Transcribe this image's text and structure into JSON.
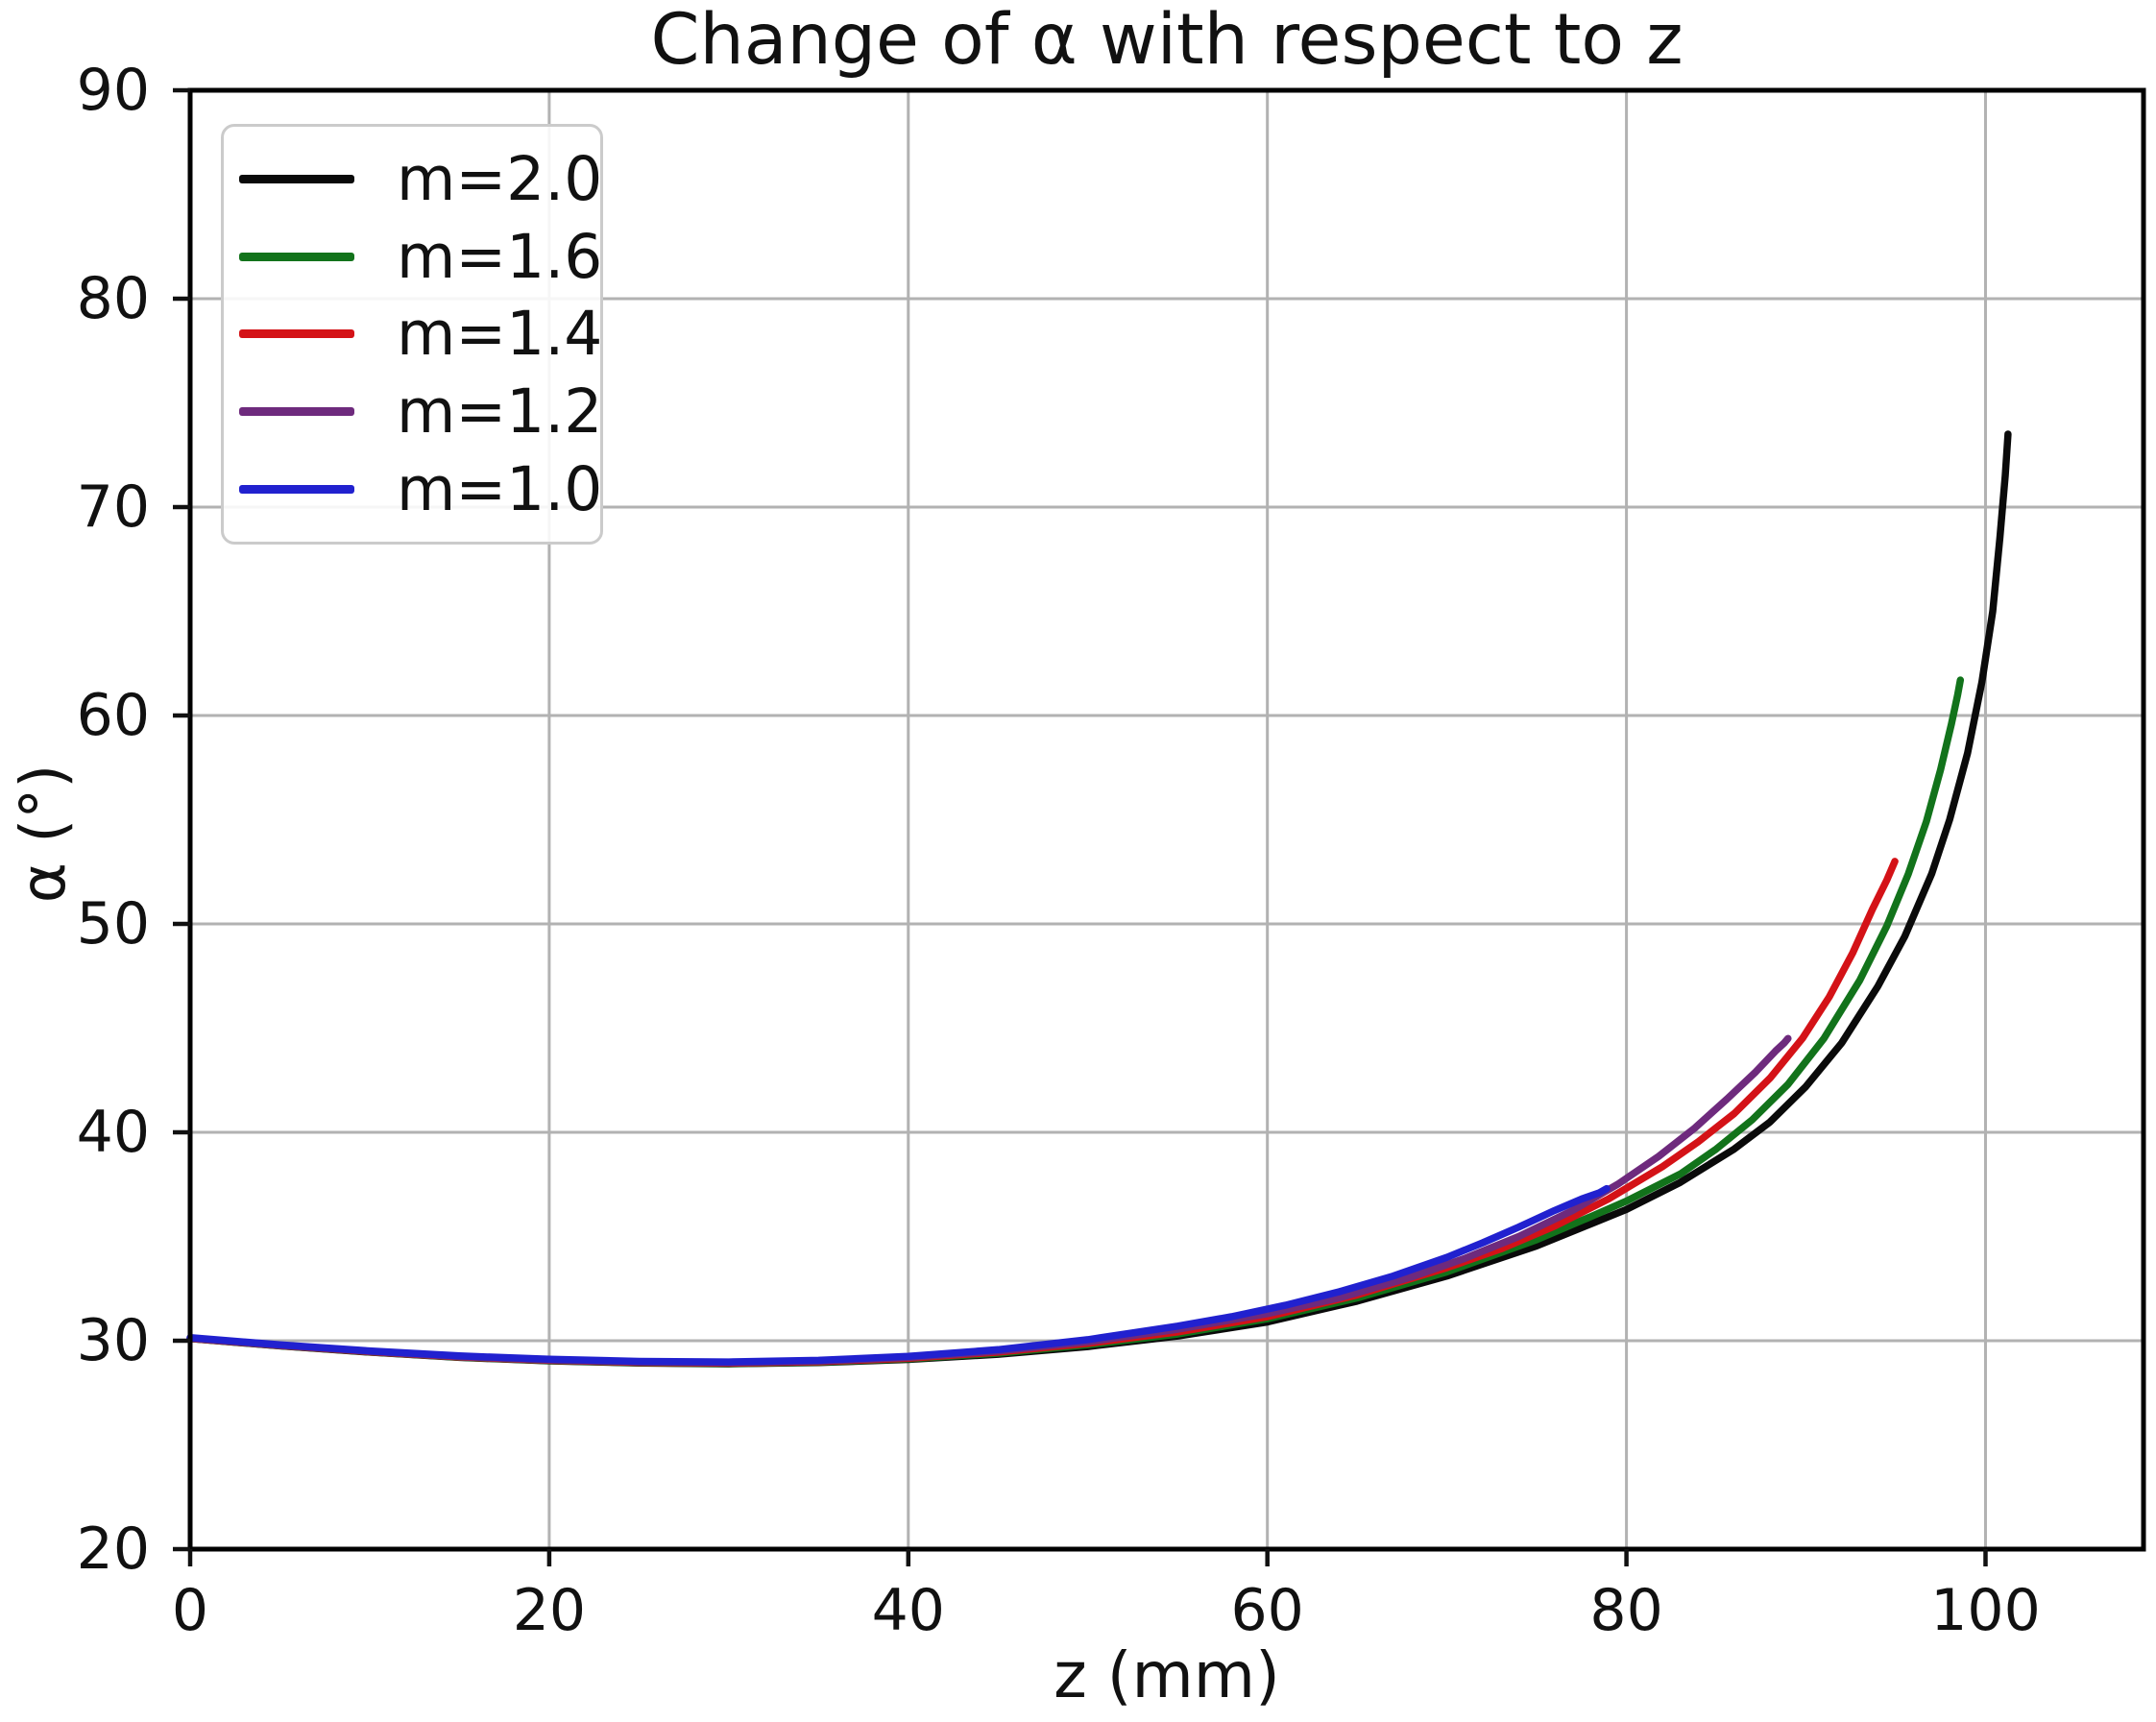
{
  "figure": {
    "background": "#ffffff",
    "text_color": "#111111"
  },
  "chart_data": {
    "type": "line",
    "title": "Change of α with respect to z",
    "xlabel": "z (mm)",
    "ylabel": "α (°)",
    "xlim": [
      0,
      108.8
    ],
    "ylim": [
      20,
      90
    ],
    "xticks": [
      0,
      20,
      40,
      60,
      80,
      100
    ],
    "yticks": [
      20,
      30,
      40,
      50,
      60,
      70,
      80,
      90
    ],
    "grid": true,
    "grid_color": "#b2b2b2",
    "spine_color": "#000000",
    "legend_position": "upper-left",
    "series": [
      {
        "name": "m=2.0",
        "color": "#0a0a0a",
        "points": [
          [
            0,
            30.1
          ],
          [
            5,
            29.75
          ],
          [
            10,
            29.45
          ],
          [
            15,
            29.2
          ],
          [
            20,
            29.03
          ],
          [
            25,
            28.93
          ],
          [
            30,
            28.89
          ],
          [
            35,
            28.95
          ],
          [
            40,
            29.1
          ],
          [
            45,
            29.35
          ],
          [
            50,
            29.72
          ],
          [
            55,
            30.22
          ],
          [
            60,
            30.9
          ],
          [
            65,
            31.9
          ],
          [
            70,
            33.1
          ],
          [
            75,
            34.55
          ],
          [
            78,
            35.6
          ],
          [
            80,
            36.3
          ],
          [
            83,
            37.6
          ],
          [
            86,
            39.2
          ],
          [
            88,
            40.5
          ],
          [
            90,
            42.2
          ],
          [
            92,
            44.3
          ],
          [
            94,
            47.0
          ],
          [
            95.5,
            49.4
          ],
          [
            97,
            52.4
          ],
          [
            98,
            55.0
          ],
          [
            99,
            58.2
          ],
          [
            99.8,
            61.6
          ],
          [
            100.4,
            65.0
          ],
          [
            100.8,
            68.5
          ],
          [
            101.1,
            71.5
          ],
          [
            101.25,
            73.5
          ]
        ]
      },
      {
        "name": "m=1.6",
        "color": "#12731b",
        "points": [
          [
            0,
            30.1
          ],
          [
            5,
            29.76
          ],
          [
            10,
            29.46
          ],
          [
            15,
            29.21
          ],
          [
            20,
            29.04
          ],
          [
            25,
            28.94
          ],
          [
            30,
            28.9
          ],
          [
            35,
            28.97
          ],
          [
            40,
            29.13
          ],
          [
            45,
            29.4
          ],
          [
            50,
            29.8
          ],
          [
            55,
            30.32
          ],
          [
            60,
            31.05
          ],
          [
            65,
            32.05
          ],
          [
            70,
            33.3
          ],
          [
            75,
            34.85
          ],
          [
            78,
            35.95
          ],
          [
            80,
            36.7
          ],
          [
            83,
            38.0
          ],
          [
            85,
            39.2
          ],
          [
            87,
            40.6
          ],
          [
            89,
            42.3
          ],
          [
            91,
            44.5
          ],
          [
            93,
            47.3
          ],
          [
            94.5,
            49.9
          ],
          [
            95.7,
            52.4
          ],
          [
            96.7,
            54.9
          ],
          [
            97.5,
            57.4
          ],
          [
            98.1,
            59.6
          ],
          [
            98.45,
            61.0
          ],
          [
            98.6,
            61.7
          ]
        ]
      },
      {
        "name": "m=1.4",
        "color": "#d41217",
        "points": [
          [
            0,
            30.11
          ],
          [
            5,
            29.77
          ],
          [
            10,
            29.47
          ],
          [
            15,
            29.22
          ],
          [
            20,
            29.06
          ],
          [
            25,
            28.96
          ],
          [
            30,
            28.92
          ],
          [
            35,
            28.99
          ],
          [
            40,
            29.16
          ],
          [
            45,
            29.45
          ],
          [
            50,
            29.87
          ],
          [
            55,
            30.42
          ],
          [
            60,
            31.15
          ],
          [
            65,
            32.2
          ],
          [
            70,
            33.5
          ],
          [
            73,
            34.4
          ],
          [
            76,
            35.5
          ],
          [
            79,
            36.8
          ],
          [
            82,
            38.35
          ],
          [
            84,
            39.55
          ],
          [
            86,
            40.9
          ],
          [
            88,
            42.6
          ],
          [
            89.8,
            44.5
          ],
          [
            91.3,
            46.5
          ],
          [
            92.6,
            48.6
          ],
          [
            93.7,
            50.7
          ],
          [
            94.5,
            52.1
          ],
          [
            94.95,
            53.0
          ]
        ]
      },
      {
        "name": "m=1.2",
        "color": "#6e2a7d",
        "points": [
          [
            0,
            30.12
          ],
          [
            5,
            29.78
          ],
          [
            10,
            29.49
          ],
          [
            15,
            29.24
          ],
          [
            20,
            29.08
          ],
          [
            25,
            28.98
          ],
          [
            30,
            28.95
          ],
          [
            35,
            29.02
          ],
          [
            40,
            29.2
          ],
          [
            45,
            29.5
          ],
          [
            50,
            29.95
          ],
          [
            55,
            30.55
          ],
          [
            60,
            31.3
          ],
          [
            64,
            32.05
          ],
          [
            68,
            33.05
          ],
          [
            71,
            33.95
          ],
          [
            74,
            35.0
          ],
          [
            77,
            36.25
          ],
          [
            79.5,
            37.5
          ],
          [
            81.8,
            38.85
          ],
          [
            83.8,
            40.2
          ],
          [
            85.6,
            41.6
          ],
          [
            87.2,
            42.9
          ],
          [
            88.3,
            43.9
          ],
          [
            88.8,
            44.3
          ],
          [
            89,
            44.5
          ]
        ]
      },
      {
        "name": "m=1.0",
        "color": "#2121cf",
        "points": [
          [
            0,
            30.15
          ],
          [
            5,
            29.8
          ],
          [
            10,
            29.51
          ],
          [
            15,
            29.27
          ],
          [
            20,
            29.11
          ],
          [
            25,
            29.01
          ],
          [
            30,
            28.98
          ],
          [
            35,
            29.06
          ],
          [
            40,
            29.25
          ],
          [
            45,
            29.57
          ],
          [
            50,
            30.05
          ],
          [
            55,
            30.7
          ],
          [
            58,
            31.15
          ],
          [
            61,
            31.7
          ],
          [
            64,
            32.35
          ],
          [
            67,
            33.1
          ],
          [
            70,
            34.0
          ],
          [
            72,
            34.7
          ],
          [
            74,
            35.45
          ],
          [
            76,
            36.25
          ],
          [
            77.5,
            36.8
          ],
          [
            78.5,
            37.1
          ],
          [
            78.9,
            37.3
          ]
        ]
      }
    ]
  }
}
